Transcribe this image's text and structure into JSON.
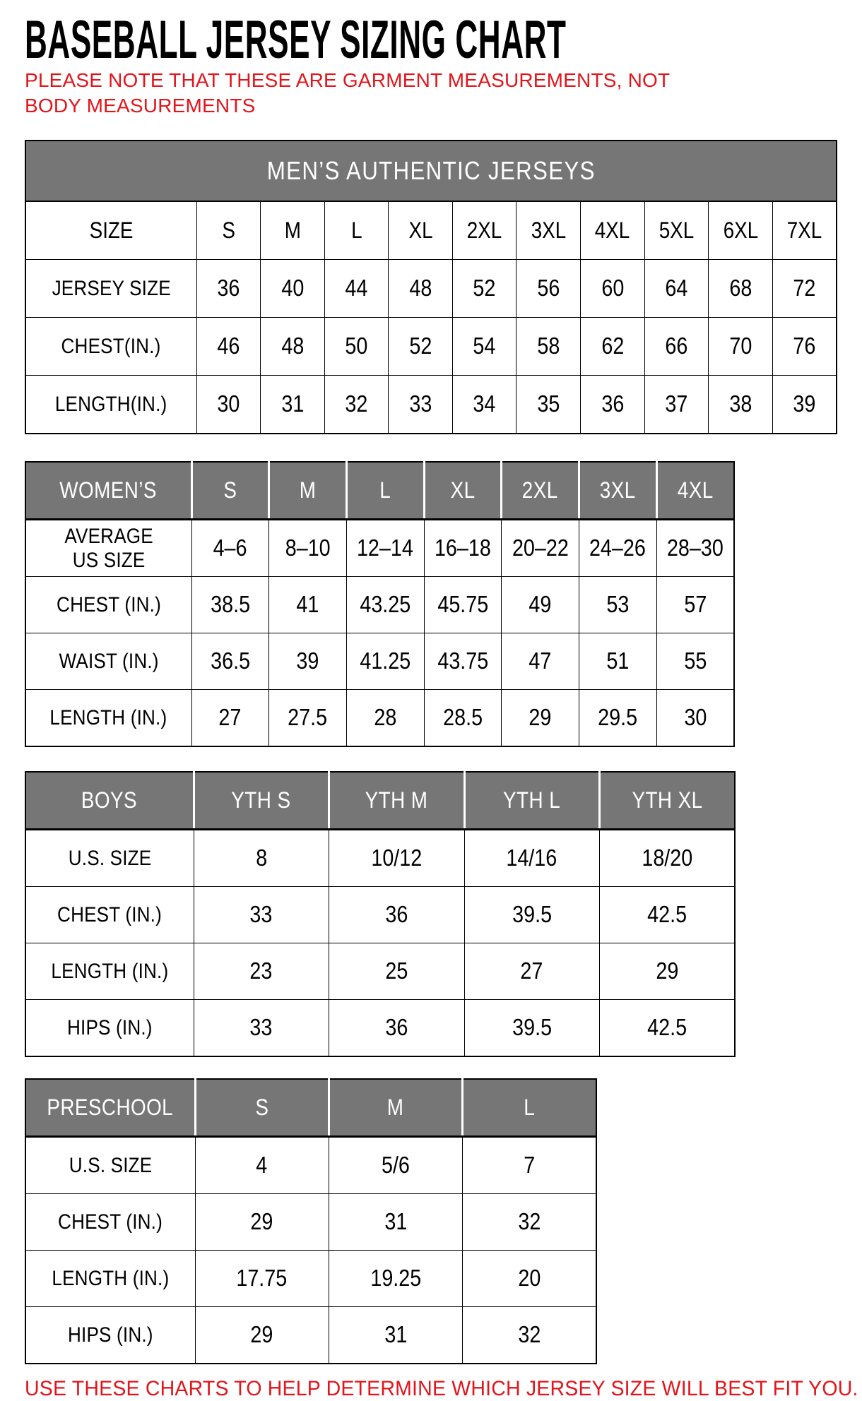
{
  "page": {
    "title": "BASEBALL JERSEY SIZING CHART",
    "note": "PLEASE NOTE THAT THESE ARE GARMENT MEASUREMENTS, NOT BODY MEASUREMENTS",
    "footer": "USE THESE CHARTS TO HELP DETERMINE WHICH JERSEY SIZE WILL BEST FIT YOU."
  },
  "colors": {
    "header_gray": "#767676",
    "accent_red": "#e2151b",
    "border_black": "#000000"
  },
  "tables": [
    {
      "banner": "MEN’S AUTHENTIC JERSEYS",
      "header_row": [
        "SIZE",
        "S",
        "M",
        "L",
        "XL",
        "2XL",
        "3XL",
        "4XL",
        "5XL",
        "6XL",
        "7XL"
      ],
      "rows": [
        {
          "label": "JERSEY SIZE",
          "values": [
            "36",
            "40",
            "44",
            "48",
            "52",
            "56",
            "60",
            "64",
            "68",
            "72"
          ]
        },
        {
          "label": "CHEST(IN.)",
          "values": [
            "46",
            "48",
            "50",
            "52",
            "54",
            "58",
            "62",
            "66",
            "70",
            "76"
          ]
        },
        {
          "label": "LENGTH(IN.)",
          "values": [
            "30",
            "31",
            "32",
            "33",
            "34",
            "35",
            "36",
            "37",
            "38",
            "39"
          ]
        }
      ]
    },
    {
      "header_row": [
        "WOMEN’S",
        "S",
        "M",
        "L",
        "XL",
        "2XL",
        "3XL",
        "4XL"
      ],
      "rows": [
        {
          "label": "AVERAGE\nUS SIZE",
          "values": [
            "4–6",
            "8–10",
            "12–14",
            "16–18",
            "20–22",
            "24–26",
            "28–30"
          ]
        },
        {
          "label": "CHEST (IN.)",
          "values": [
            "38.5",
            "41",
            "43.25",
            "45.75",
            "49",
            "53",
            "57"
          ]
        },
        {
          "label": "WAIST (IN.)",
          "values": [
            "36.5",
            "39",
            "41.25",
            "43.75",
            "47",
            "51",
            "55"
          ]
        },
        {
          "label": "LENGTH (IN.)",
          "values": [
            "27",
            "27.5",
            "28",
            "28.5",
            "29",
            "29.5",
            "30"
          ]
        }
      ]
    },
    {
      "header_row": [
        "BOYS",
        "YTH S",
        "YTH M",
        "YTH L",
        "YTH XL"
      ],
      "rows": [
        {
          "label": "U.S. SIZE",
          "values": [
            "8",
            "10/12",
            "14/16",
            "18/20"
          ]
        },
        {
          "label": "CHEST (IN.)",
          "values": [
            "33",
            "36",
            "39.5",
            "42.5"
          ]
        },
        {
          "label": "LENGTH (IN.)",
          "values": [
            "23",
            "25",
            "27",
            "29"
          ]
        },
        {
          "label": "HIPS (IN.)",
          "values": [
            "33",
            "36",
            "39.5",
            "42.5"
          ]
        }
      ]
    },
    {
      "header_row": [
        "PRESCHOOL",
        "S",
        "M",
        "L"
      ],
      "rows": [
        {
          "label": "U.S. SIZE",
          "values": [
            "4",
            "5/6",
            "7"
          ]
        },
        {
          "label": "CHEST (IN.)",
          "values": [
            "29",
            "31",
            "32"
          ]
        },
        {
          "label": "LENGTH (IN.)",
          "values": [
            "17.75",
            "19.25",
            "20"
          ]
        },
        {
          "label": "HIPS (IN.)",
          "values": [
            "29",
            "31",
            "32"
          ]
        }
      ]
    }
  ]
}
